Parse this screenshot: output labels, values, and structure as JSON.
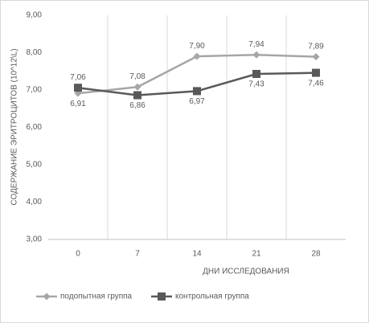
{
  "chart_data": {
    "type": "line",
    "x_label": "ДНИ ИССЛЕДОВАНИЯ",
    "y_label": "СОДЕРЖАНИЕ ЭРИТРОЦИТОВ (10^12\\L)",
    "categories": [
      "0",
      "7",
      "14",
      "21",
      "28"
    ],
    "series": [
      {
        "name": "подопытная группа",
        "color": "#a6a6a6",
        "marker": "diamond",
        "values": [
          6.91,
          7.08,
          7.9,
          7.94,
          7.89
        ],
        "value_labels": [
          "6,91",
          "7,08",
          "7,90",
          "7,94",
          "7,89"
        ]
      },
      {
        "name": "контрольная группа",
        "color": "#595959",
        "marker": "square",
        "values": [
          7.06,
          6.86,
          6.97,
          7.43,
          7.46
        ],
        "value_labels": [
          "7,06",
          "6,86",
          "6,97",
          "7,43",
          "7,46"
        ]
      }
    ],
    "ylim": [
      3,
      9
    ],
    "yticks": [
      {
        "value": 3,
        "label": "3,00"
      },
      {
        "value": 4,
        "label": "4,00"
      },
      {
        "value": 5,
        "label": "5,00"
      },
      {
        "value": 6,
        "label": "6,00"
      },
      {
        "value": 7,
        "label": "7,00"
      },
      {
        "value": 8,
        "label": "8,00"
      },
      {
        "value": 9,
        "label": "9,00"
      }
    ],
    "grid": "x",
    "legend": "bottom"
  }
}
